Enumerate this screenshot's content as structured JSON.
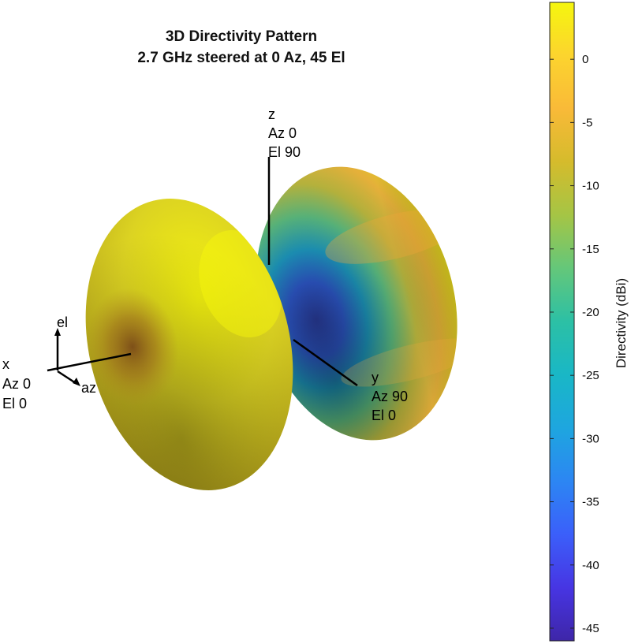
{
  "chart_data": {
    "type": "3d-surface",
    "title": [
      "3D Directivity Pattern",
      "2.7 GHz steered at 0 Az, 45 El"
    ],
    "colorbar": {
      "label": "Directivity (dBi)",
      "ticks": [
        0,
        -5,
        -10,
        -15,
        -20,
        -25,
        -30,
        -35,
        -40,
        -45
      ],
      "range": [
        -46,
        4.5
      ],
      "colormap": "parula",
      "stops": [
        "#3e26a8",
        "#4735e3",
        "#3b5ffa",
        "#2c86f3",
        "#1ea6df",
        "#19b7c6",
        "#2cc0a5",
        "#64c77a",
        "#a5c545",
        "#d5bb2c",
        "#f9ba38",
        "#fcd42e",
        "#f5f60e"
      ]
    },
    "lobes": [
      {
        "name": "front",
        "color_min_dbi": -6,
        "color_max_dbi": 4
      },
      {
        "name": "back",
        "color_min_dbi": -40,
        "color_max_dbi": 3
      }
    ],
    "axes_labels": {
      "z": [
        "z",
        "Az 0",
        "El 90"
      ],
      "y": [
        "y",
        "Az 90",
        "El 0"
      ],
      "x": [
        "x",
        "Az 0",
        "El 0"
      ],
      "el": "el",
      "az": "az"
    }
  },
  "colors": {
    "background": "#ffffff",
    "text": "#000000"
  }
}
